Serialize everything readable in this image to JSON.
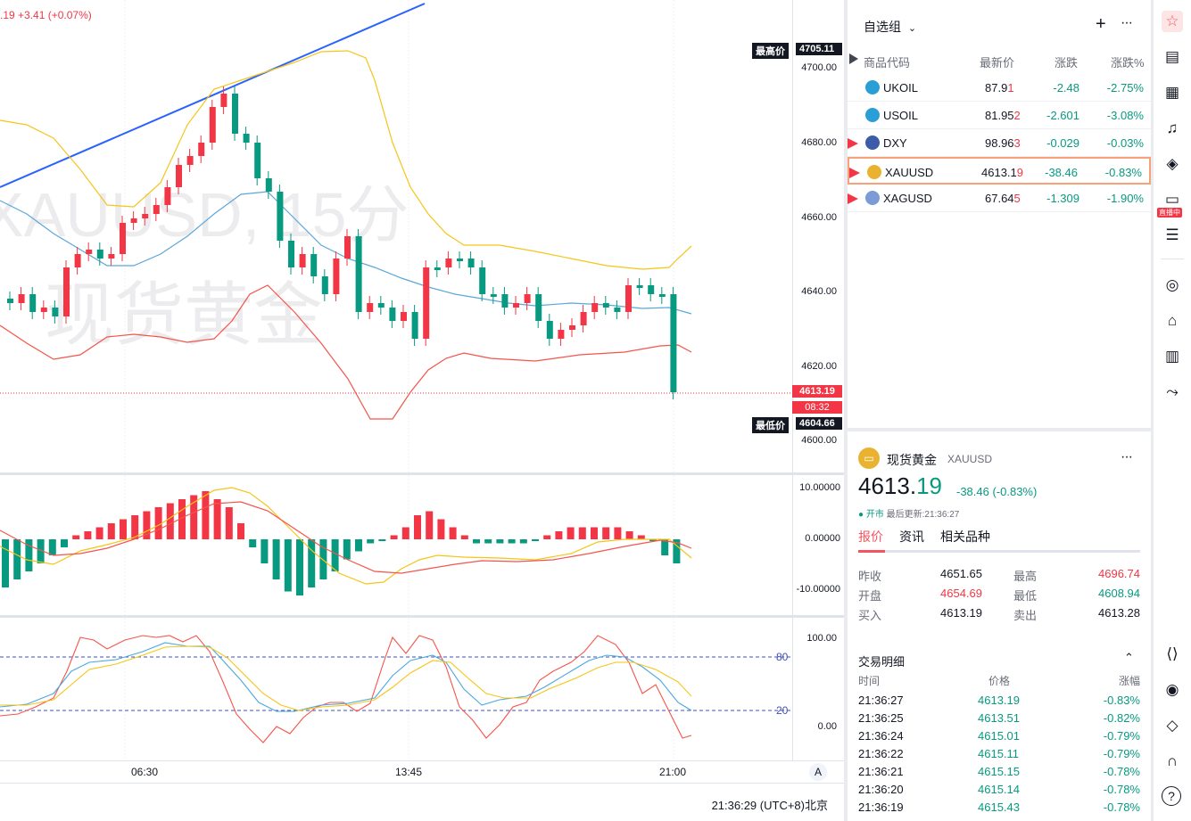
{
  "chart": {
    "change_text": ".19 +3.41 (+0.07%)",
    "watermark_symbol": "XAUUSD, 15分",
    "watermark_name": "现货黄金",
    "high_label": "最高价",
    "high_value": "4705.11",
    "low_label": "最低价",
    "low_value": "4604.66",
    "current_price": "4613.19",
    "countdown": "08:32",
    "price_ticks": [
      "4700.00",
      "4680.00",
      "4660.00",
      "4640.00",
      "4620.00",
      "4600.00"
    ],
    "macd_ticks": [
      "10.00000",
      "0.00000",
      "-10.00000"
    ],
    "kdj_ticks": [
      "100.00",
      "0.00"
    ],
    "kdj_levels": [
      "80",
      "20"
    ],
    "time_ticks": [
      "06:30",
      "13:45",
      "21:00"
    ],
    "auto_button": "A",
    "clock": "21:36:29",
    "timezone": "(UTC+8)北京"
  },
  "watchlist": {
    "title": "自选组",
    "add_icon": "plus-icon",
    "more_icon": "more-icon",
    "headers": {
      "symbol": "商品代码",
      "last": "最新价",
      "change": "涨跌",
      "change_pct": "涨跌%"
    },
    "rows": [
      {
        "symbol": "UKOIL",
        "last": "87.91",
        "change": "-2.48",
        "change_pct": "-2.75%",
        "icon": "oil-icon",
        "flag": false
      },
      {
        "symbol": "USOIL",
        "last": "81.952",
        "change": "-2.601",
        "change_pct": "-3.08%",
        "icon": "oil-icon",
        "flag": false
      },
      {
        "symbol": "DXY",
        "last": "98.963",
        "change": "-0.029",
        "change_pct": "-0.03%",
        "icon": "us-flag-icon",
        "flag": true
      },
      {
        "symbol": "XAUUSD",
        "last": "4613.19",
        "change": "-38.46",
        "change_pct": "-0.83%",
        "icon": "gold-icon",
        "flag": true,
        "selected": true
      },
      {
        "symbol": "XAGUSD",
        "last": "67.645",
        "change": "-1.309",
        "change_pct": "-1.90%",
        "icon": "silver-icon",
        "flag": true
      }
    ]
  },
  "detail": {
    "name": "现货黄金",
    "symbol": "XAUUSD",
    "price_main": "4613.",
    "price_frac": "19",
    "change": "-38.46 (-0.83%)",
    "market_status": "● 开市",
    "update_label": "最后更新:21:36:27",
    "tabs": [
      "报价",
      "资讯",
      "相关品种"
    ],
    "stats": [
      {
        "l1": "昨收",
        "v1": "4651.65",
        "l2": "最高",
        "v2": "4696.74"
      },
      {
        "l1": "开盘",
        "v1": "4654.69",
        "l2": "最低",
        "v2": "4608.94"
      },
      {
        "l1": "买入",
        "v1": "4613.19",
        "l2": "卖出",
        "v2": "4613.28"
      }
    ],
    "trades_title": "交易明细",
    "trades_headers": {
      "time": "时间",
      "price": "价格",
      "chg": "涨幅"
    },
    "trades": [
      {
        "time": "21:36:27",
        "price": "4613.19",
        "chg": "-0.83%"
      },
      {
        "time": "21:36:25",
        "price": "4613.51",
        "chg": "-0.82%"
      },
      {
        "time": "21:36:24",
        "price": "4615.01",
        "chg": "-0.79%"
      },
      {
        "time": "21:36:22",
        "price": "4615.11",
        "chg": "-0.79%"
      },
      {
        "time": "21:36:21",
        "price": "4615.15",
        "chg": "-0.78%"
      },
      {
        "time": "21:36:20",
        "price": "4615.14",
        "chg": "-0.78%"
      },
      {
        "time": "21:36:19",
        "price": "4615.43",
        "chg": "-0.78%"
      }
    ]
  },
  "toolbar": {
    "live_badge": "直播中"
  }
}
